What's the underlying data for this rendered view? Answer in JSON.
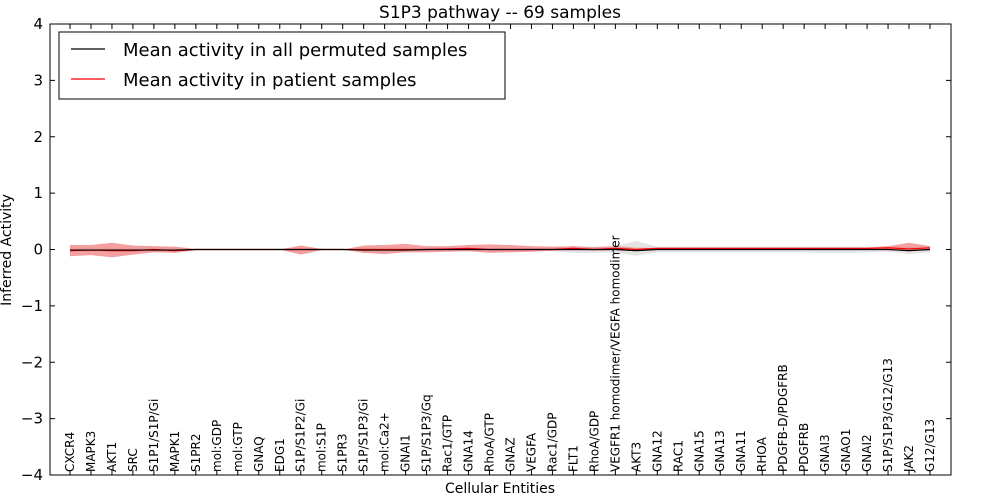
{
  "chart_data": {
    "type": "line",
    "title": "S1P3 pathway -- 69 samples",
    "xlabel": "Cellular Entities",
    "ylabel": "Inferred Activity",
    "ylim": [
      -4,
      4
    ],
    "yticks": [
      4,
      3,
      2,
      1,
      0,
      -1,
      -2,
      -3,
      -4
    ],
    "ytick_labels": [
      "4",
      "3",
      "2",
      "1",
      "0",
      "−1",
      "−2",
      "−3",
      "−4"
    ],
    "grid": false,
    "legend": {
      "placement": "top-left",
      "entries": [
        {
          "label": "Mean activity in all permuted samples",
          "color": "#000000"
        },
        {
          "label": "Mean activity in patient samples",
          "color": "#ff0000"
        }
      ]
    },
    "categories": [
      "CXCR4",
      "MAPK3",
      "AKT1",
      "SRC",
      "S1P1/S1P/Gi",
      "MAPK1",
      "S1PR2",
      "mol:GDP",
      "mol:GTP",
      "GNAQ",
      "EDG1",
      "S1P/S1P2/Gi",
      "mol:S1P",
      "S1PR3",
      "S1P/S1P3/Gi",
      "mol:Ca2+",
      "GNAI1",
      "S1P/S1P3/Gq",
      "Rac1/GTP",
      "GNA14",
      "RhoA/GTP",
      "GNAZ",
      "VEGFA",
      "Rac1/GDP",
      "FLT1",
      "RhoA/GDP",
      "VEGFR1 homodimer/VEGFA homodimer",
      "AKT3",
      "GNA12",
      "RAC1",
      "GNA15",
      "GNA13",
      "GNA11",
      "RHOA",
      "PDGFB-D/PDGFRB",
      "PDGFRB",
      "GNAI3",
      "GNAO1",
      "GNAI2",
      "S1P/S1P3/G12/G13",
      "JAK2",
      "G12/G13"
    ],
    "series": [
      {
        "name": "Mean activity in all permuted samples",
        "color": "#000000",
        "values": [
          -0.01,
          -0.01,
          -0.01,
          -0.01,
          -0.01,
          -0.01,
          0,
          0,
          0,
          0,
          0,
          0,
          0,
          0,
          -0.01,
          -0.01,
          -0.01,
          0,
          0,
          0,
          0,
          0,
          0,
          0,
          0,
          0,
          0,
          -0.02,
          0,
          0,
          0,
          0,
          0,
          0,
          0,
          0,
          0,
          0,
          0,
          0,
          -0.02,
          0
        ],
        "band": {
          "color": "#cccccc",
          "lower": [
            -0.04,
            -0.04,
            -0.04,
            -0.04,
            -0.04,
            -0.03,
            -0.01,
            0,
            0,
            0,
            0,
            -0.01,
            0,
            0,
            -0.04,
            -0.04,
            -0.04,
            -0.03,
            -0.02,
            -0.02,
            -0.02,
            -0.02,
            -0.02,
            -0.03,
            -0.06,
            -0.06,
            -0.05,
            -0.11,
            -0.05,
            -0.05,
            -0.05,
            -0.05,
            -0.05,
            -0.05,
            -0.05,
            -0.05,
            -0.06,
            -0.06,
            -0.05,
            -0.04,
            -0.08,
            -0.05
          ],
          "upper": [
            0.03,
            0.03,
            0.03,
            0.03,
            0.03,
            0.03,
            0.01,
            0,
            0,
            0,
            0,
            0.01,
            0,
            0,
            0.03,
            0.03,
            0.03,
            0.03,
            0.02,
            0.02,
            0.02,
            0.02,
            0.02,
            0.03,
            0.05,
            0.05,
            0.06,
            0.15,
            0.05,
            0.05,
            0.05,
            0.05,
            0.05,
            0.05,
            0.05,
            0.05,
            0.05,
            0.05,
            0.05,
            0.05,
            0.05,
            0.05
          ]
        }
      },
      {
        "name": "Mean activity in patient samples",
        "color": "#ff0000",
        "values": [
          -0.02,
          -0.01,
          -0.02,
          -0.02,
          0,
          -0.02,
          0,
          0,
          0,
          0,
          0,
          0,
          0,
          0,
          0,
          0,
          0,
          0,
          0.01,
          0.02,
          0,
          0,
          0,
          0,
          0.02,
          0,
          0.02,
          0,
          0.02,
          0.02,
          0.02,
          0.02,
          0.02,
          0.02,
          0.02,
          0.02,
          0.02,
          0.02,
          0.02,
          0.03,
          0.01,
          0.03
        ],
        "band": {
          "color": "#f08080",
          "lower": [
            -0.12,
            -0.1,
            -0.14,
            -0.09,
            -0.05,
            -0.06,
            -0.01,
            0,
            0,
            0,
            0,
            -0.09,
            -0.01,
            0,
            -0.06,
            -0.08,
            -0.05,
            -0.05,
            -0.04,
            -0.03,
            -0.06,
            -0.05,
            -0.04,
            -0.02,
            -0.01,
            -0.02,
            -0.01,
            -0.01,
            0,
            0,
            0,
            0,
            0,
            0,
            0,
            0,
            0,
            0,
            0,
            -0.01,
            -0.03,
            -0.01
          ],
          "upper": [
            0.08,
            0.08,
            0.12,
            0.07,
            0.06,
            0.05,
            0.01,
            0,
            0,
            0,
            0,
            0.07,
            0.01,
            0,
            0.07,
            0.08,
            0.1,
            0.06,
            0.06,
            0.08,
            0.09,
            0.08,
            0.06,
            0.05,
            0.06,
            0.04,
            0.06,
            0.03,
            0.03,
            0.03,
            0.03,
            0.03,
            0.03,
            0.03,
            0.03,
            0.03,
            0.03,
            0.03,
            0.03,
            0.06,
            0.12,
            0.06
          ]
        }
      }
    ]
  }
}
